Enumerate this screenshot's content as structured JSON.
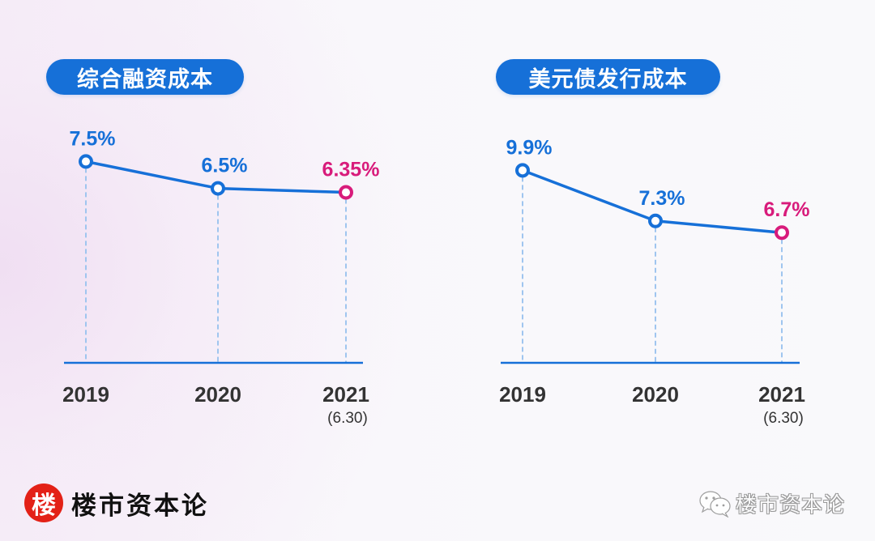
{
  "colors": {
    "line": "#1670d8",
    "highlight": "#d81b7b",
    "gridline": "#9fc5ef",
    "axis_text": "#333333",
    "brand_red": "#e32117"
  },
  "chart_data": [
    {
      "type": "line",
      "title": "综合融资成本",
      "categories": [
        "2019",
        "2020",
        "2021"
      ],
      "category_sublabels": [
        "",
        "",
        "(6.30)"
      ],
      "series": [
        {
          "name": "综合融资成本",
          "values": [
            7.5,
            6.5,
            6.35
          ],
          "unit": "%"
        }
      ],
      "data_labels": [
        "7.5%",
        "6.5%",
        "6.35%"
      ],
      "highlight_index": 2,
      "xlabel": "",
      "ylabel": "",
      "ylim": [
        0,
        10.5
      ],
      "grid": "vertical-dashed"
    },
    {
      "type": "line",
      "title": "美元债发行成本",
      "categories": [
        "2019",
        "2020",
        "2021"
      ],
      "category_sublabels": [
        "",
        "",
        "(6.30)"
      ],
      "series": [
        {
          "name": "美元债发行成本",
          "values": [
            9.9,
            7.3,
            6.7
          ],
          "unit": "%"
        }
      ],
      "data_labels": [
        "9.9%",
        "7.3%",
        "6.7%"
      ],
      "highlight_index": 2,
      "xlabel": "",
      "ylabel": "",
      "ylim": [
        0,
        14.5
      ],
      "grid": "vertical-dashed"
    }
  ],
  "footer": {
    "brand_badge": "楼",
    "brand_name": "楼市资本论",
    "watermark_icon": "wechat-icon",
    "watermark_text": "楼市资本论"
  }
}
